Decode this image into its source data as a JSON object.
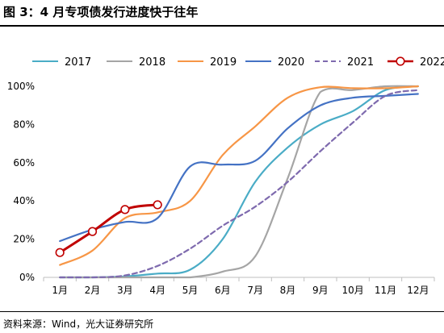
{
  "header": {
    "title": "图 3：4 月专项债发行进度快于往年"
  },
  "footer": {
    "source": "资料来源：Wind，光大证券研究所"
  },
  "chart_data": {
    "type": "line",
    "title": "图 3：4 月专项债发行进度快于往年",
    "xlabel": "",
    "ylabel": "",
    "categories": [
      "1月",
      "2月",
      "3月",
      "4月",
      "5月",
      "6月",
      "7月",
      "8月",
      "9月",
      "10月",
      "11月",
      "12月"
    ],
    "y_ticks": [
      "0%",
      "20%",
      "40%",
      "60%",
      "80%",
      "100%"
    ],
    "ylim": [
      0,
      100
    ],
    "grid": false,
    "legend_position": "top",
    "series": [
      {
        "name": "2017",
        "color": "#4aacc6",
        "style": "solid",
        "values": [
          0,
          0,
          0.5,
          2,
          4,
          20,
          50,
          68,
          80,
          87,
          98,
          100
        ]
      },
      {
        "name": "2018",
        "color": "#a5a5a5",
        "style": "solid",
        "values": [
          0,
          0,
          0,
          0,
          0,
          3,
          11,
          52,
          97,
          98,
          100,
          100
        ]
      },
      {
        "name": "2019",
        "color": "#f79646",
        "style": "solid",
        "values": [
          6.5,
          14,
          31,
          34,
          40,
          64,
          79,
          94,
          99.5,
          99,
          99,
          100
        ]
      },
      {
        "name": "2020",
        "color": "#4472c4",
        "style": "solid",
        "values": [
          19,
          25,
          29,
          31,
          58,
          59,
          61,
          78,
          90,
          94,
          95,
          96
        ]
      },
      {
        "name": "2021",
        "color": "#7e6aae",
        "style": "dashed",
        "values": [
          0,
          0,
          1,
          6,
          15,
          27,
          37,
          50,
          66,
          81,
          95,
          98
        ]
      },
      {
        "name": "2022",
        "color": "#c00000",
        "style": "solid-marker",
        "values": [
          13,
          24,
          35.5,
          38,
          null,
          null,
          null,
          null,
          null,
          null,
          null,
          null
        ]
      }
    ]
  }
}
